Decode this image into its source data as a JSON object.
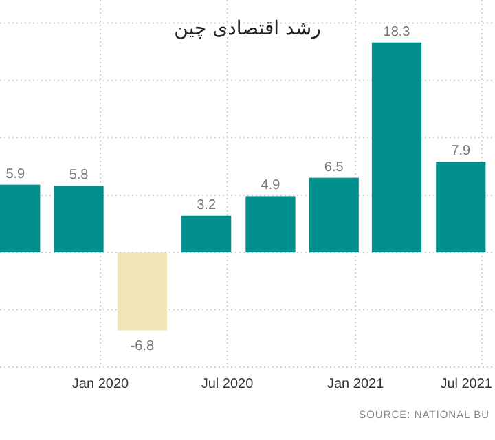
{
  "chart_data": {
    "type": "bar",
    "title": "رشد اقتصادی چین",
    "x": [
      "2019-09-01",
      "2019-12-01",
      "2020-03-01",
      "2020-06-01",
      "2020-09-01",
      "2020-12-01",
      "2021-03-01",
      "2021-06-01"
    ],
    "values": [
      5.9,
      5.8,
      -6.8,
      3.2,
      4.9,
      6.5,
      18.3,
      7.9
    ],
    "colors": [
      "#008f8c",
      "#008f8c",
      "#f2e4b4",
      "#008f8c",
      "#008f8c",
      "#008f8c",
      "#008f8c",
      "#008f8c"
    ],
    "data_labels": true,
    "xlim": [
      "2019-08-10",
      "2021-07-20"
    ],
    "xticks": [
      {
        "value": "2020-01-01",
        "label": "Jan 2020"
      },
      {
        "value": "2020-07-01",
        "label": "Jul 2020"
      },
      {
        "value": "2021-01-01",
        "label": "Jan 2021"
      },
      {
        "value": "2021-07-01",
        "label": "Jul 2021"
      }
    ],
    "ylim": [
      -10,
      22
    ],
    "yticks": [
      {
        "value": -10,
        "label": null
      },
      {
        "value": -5,
        "label": null
      },
      {
        "value": 0,
        "label": null
      },
      {
        "value": 5,
        "label": null
      },
      {
        "value": 10,
        "label": null
      },
      {
        "value": 15,
        "label": null
      },
      {
        "value": 20,
        "label": null
      }
    ],
    "grid": true,
    "tick_labels": "x",
    "annotations": [
      "SOURCE: NATIONAL BU"
    ]
  }
}
